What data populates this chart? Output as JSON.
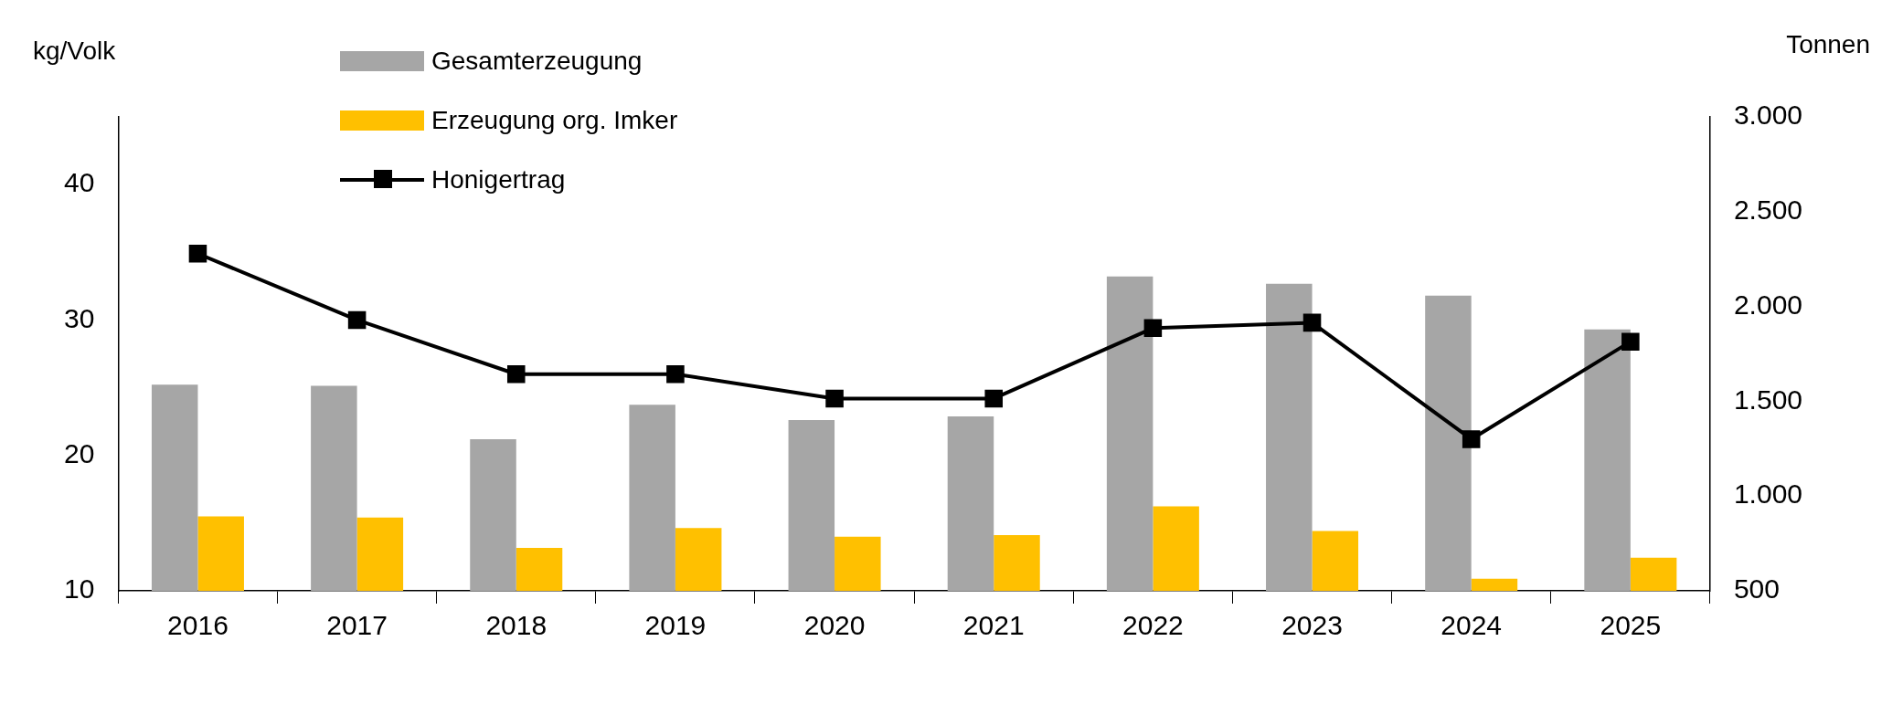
{
  "chart_data": {
    "type": "bar",
    "ylabel": "kg/Volk",
    "y2label": "Tonnen",
    "categories": [
      "2016",
      "2017",
      "2018",
      "2019",
      "2020",
      "2021",
      "2022",
      "2023",
      "2024",
      "2025"
    ],
    "series": [
      {
        "name": "Gesamterzeugung",
        "axis": "y2",
        "color": "#a6a6a6",
        "values": [
          1588,
          1582,
          1300,
          1481,
          1401,
          1420,
          2158,
          2120,
          2057,
          1879
        ]
      },
      {
        "name": "Erzeugung org. Imker",
        "axis": "y2",
        "color": "#ffc000",
        "values": [
          892,
          886,
          727,
          831,
          785,
          794,
          945,
          815,
          564,
          675
        ]
      },
      {
        "name": "Honigertrag",
        "type": "line",
        "color": "#000000",
        "marker": "square",
        "values": [
          34.9,
          30.0,
          26.0,
          26.0,
          24.2,
          24.2,
          29.4,
          29.8,
          21.2,
          28.4
        ]
      }
    ],
    "ylim": [
      10,
      45
    ],
    "yticks": [
      10,
      20,
      30,
      40
    ],
    "y2lim": [
      500,
      3000
    ],
    "y2ticks": [
      {
        "value": 500,
        "label": "500"
      },
      {
        "value": 1000,
        "label": "1.000"
      },
      {
        "value": 1500,
        "label": "1.500"
      },
      {
        "value": 2000,
        "label": "2.000"
      },
      {
        "value": 2500,
        "label": "2.500"
      },
      {
        "value": 3000,
        "label": "3.000"
      }
    ],
    "grid": false,
    "legend": "top left"
  }
}
